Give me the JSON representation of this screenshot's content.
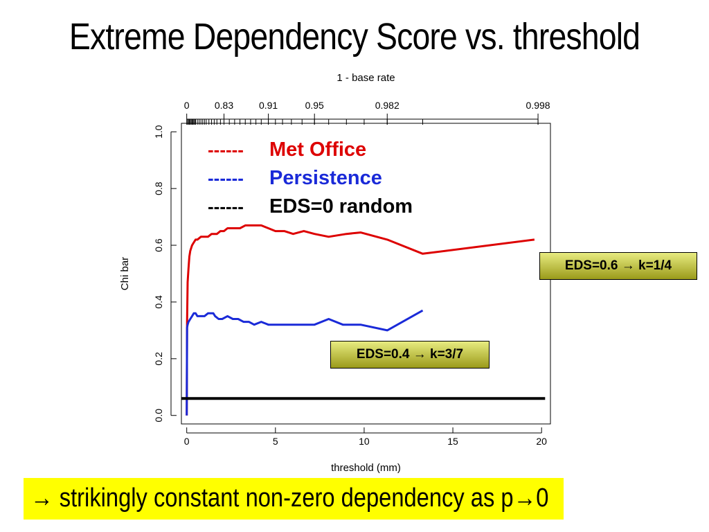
{
  "slide": {
    "title": "Extreme Dependency Score vs. threshold",
    "footer_arrow": "→",
    "footer_text": " strikingly constant non-zero dependency as p",
    "footer_arrow2": "→",
    "footer_end": "0"
  },
  "callouts": [
    {
      "text": "EDS=0.6 → k=1/4"
    },
    {
      "text": "EDS=0.4 → k=3/7"
    }
  ],
  "chart_data": {
    "type": "line",
    "xlabel": "threshold (mm)",
    "ylabel": "Chi bar",
    "top_axis_label": "1 - base rate",
    "xlim": [
      -0.3,
      20.5
    ],
    "ylim": [
      -0.03,
      1.03
    ],
    "x_ticks": [
      0,
      5,
      10,
      15,
      20
    ],
    "y_ticks": [
      0.0,
      0.2,
      0.4,
      0.6,
      0.8,
      1.0
    ],
    "y_tick_labels": [
      "0.0",
      "0.2",
      "0.4",
      "0.6",
      "0.8",
      "1.0"
    ],
    "top_ticks": [
      {
        "x": 0,
        "label": "0"
      },
      {
        "x": 2.1,
        "label": "0.83"
      },
      {
        "x": 4.6,
        "label": "0.91"
      },
      {
        "x": 7.2,
        "label": "0.95"
      },
      {
        "x": 11.3,
        "label": "0.982"
      },
      {
        "x": 19.8,
        "label": "0.998"
      }
    ],
    "top_minor_ticks": [
      0.05,
      0.1,
      0.15,
      0.2,
      0.25,
      0.3,
      0.35,
      0.4,
      0.45,
      0.5,
      0.6,
      0.7,
      0.8,
      0.9,
      1.0,
      1.1,
      1.25,
      1.4,
      1.55,
      1.7,
      1.9,
      2.1,
      2.4,
      2.7,
      3.0,
      3.3,
      3.6,
      3.9,
      4.2,
      4.6,
      5.0,
      5.4,
      5.9,
      6.5,
      7.2,
      8.0,
      9.0,
      10.0,
      11.3,
      13.3,
      19.8
    ],
    "legend_placement": "top-left",
    "legend_dash": "------",
    "series": [
      {
        "name": "Met Office",
        "color": "#dd0000",
        "x": [
          0,
          0.02,
          0.05,
          0.1,
          0.15,
          0.2,
          0.3,
          0.4,
          0.5,
          0.6,
          0.8,
          1.0,
          1.2,
          1.4,
          1.5,
          1.7,
          1.9,
          2.1,
          2.3,
          2.5,
          2.7,
          3.0,
          3.3,
          3.6,
          3.9,
          4.2,
          4.6,
          5.0,
          5.5,
          6.0,
          6.6,
          7.2,
          8.0,
          9.0,
          9.8,
          11.3,
          13.3,
          19.6
        ],
        "y": [
          0.0,
          0.33,
          0.47,
          0.52,
          0.56,
          0.58,
          0.6,
          0.61,
          0.62,
          0.62,
          0.63,
          0.63,
          0.63,
          0.64,
          0.64,
          0.64,
          0.65,
          0.65,
          0.66,
          0.66,
          0.66,
          0.66,
          0.67,
          0.67,
          0.67,
          0.67,
          0.66,
          0.65,
          0.65,
          0.64,
          0.65,
          0.64,
          0.63,
          0.64,
          0.645,
          0.62,
          0.57,
          0.62
        ]
      },
      {
        "name": "Persistence",
        "color": "#1a2ad8",
        "x": [
          0,
          0.02,
          0.05,
          0.1,
          0.2,
          0.3,
          0.4,
          0.5,
          0.6,
          0.7,
          0.8,
          0.9,
          1.0,
          1.2,
          1.4,
          1.5,
          1.6,
          1.8,
          2.0,
          2.3,
          2.6,
          2.9,
          3.2,
          3.5,
          3.8,
          4.2,
          4.6,
          5.0,
          5.5,
          6.0,
          6.6,
          7.2,
          8.0,
          8.8,
          9.8,
          11.3,
          13.3
        ],
        "y": [
          0.0,
          0.31,
          0.32,
          0.33,
          0.34,
          0.35,
          0.36,
          0.36,
          0.35,
          0.35,
          0.35,
          0.35,
          0.35,
          0.36,
          0.36,
          0.36,
          0.35,
          0.34,
          0.34,
          0.35,
          0.34,
          0.34,
          0.33,
          0.33,
          0.32,
          0.33,
          0.32,
          0.32,
          0.32,
          0.32,
          0.32,
          0.32,
          0.34,
          0.32,
          0.32,
          0.3,
          0.37
        ]
      },
      {
        "name": "EDS=0 random",
        "color": "#000000",
        "x": [
          -0.3,
          20.2
        ],
        "y": [
          0.06,
          0.06
        ]
      }
    ]
  }
}
